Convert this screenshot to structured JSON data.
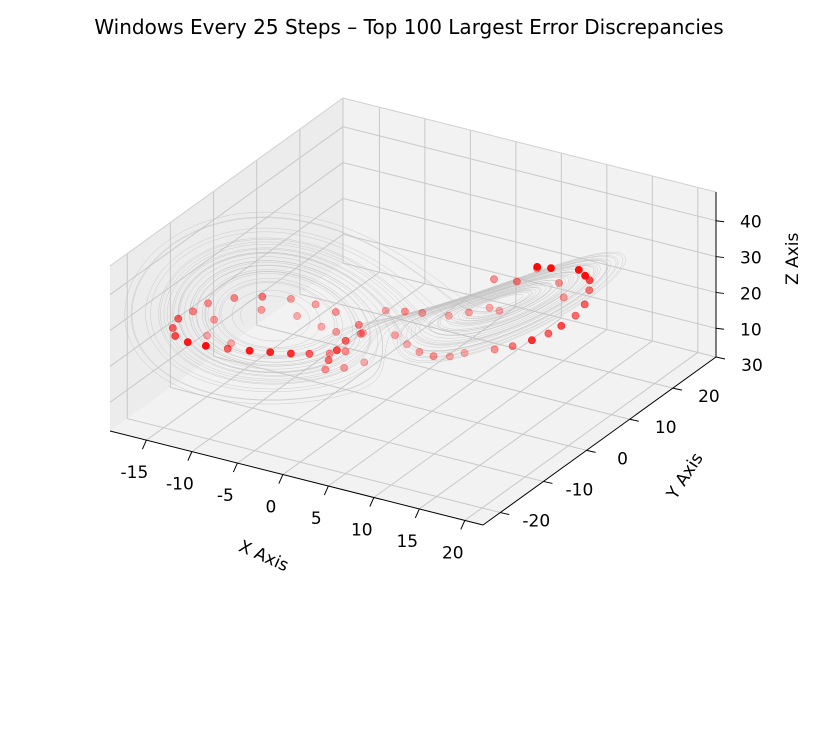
{
  "chart_data": {
    "type": "scatter",
    "projection": "3d",
    "title": "Windows Every 25 Steps – Top 100 Largest Error Discrepancies",
    "xlabel": "X Axis",
    "ylabel": "Y Axis",
    "zlabel": "Z Axis",
    "xlim": [
      -19,
      22
    ],
    "ylim": [
      -24,
      30
    ],
    "zlim": [
      2,
      48
    ],
    "xticks": [
      -15,
      -10,
      -5,
      0,
      5,
      10,
      15,
      20
    ],
    "yticks": [
      -20,
      -10,
      0,
      10,
      20,
      30
    ],
    "zticks": [
      10,
      20,
      30,
      40
    ],
    "grid": true,
    "colors": {
      "trajectory": "#bfbfbf",
      "points": "#ff0000",
      "pane": "#f2f2f2",
      "grid": "#c8c8c8"
    },
    "trajectory": {
      "description_series": "gray Lorenz-attractor trajectory",
      "sigma": 10,
      "rho": 28,
      "beta": 2.6667
    },
    "series": [
      {
        "points": [
          {
            "x": 12.5,
            "y": 11.8,
            "z": 36.5,
            "alpha": 0.95
          },
          {
            "x": 11.4,
            "y": 10.9,
            "z": 36.9,
            "alpha": 0.95
          },
          {
            "x": 14.6,
            "y": 13.8,
            "z": 35.6,
            "alpha": 0.95
          },
          {
            "x": 15.2,
            "y": 14.0,
            "z": 34.2,
            "alpha": 0.95
          },
          {
            "x": 15.6,
            "y": 14.2,
            "z": 33.0,
            "alpha": 0.7
          },
          {
            "x": 15.9,
            "y": 13.5,
            "z": 31.0,
            "alpha": 0.5
          },
          {
            "x": 16.1,
            "y": 12.0,
            "z": 28.5,
            "alpha": 0.6
          },
          {
            "x": 15.8,
            "y": 10.5,
            "z": 26.5,
            "alpha": 0.55
          },
          {
            "x": 15.0,
            "y": 8.9,
            "z": 24.5,
            "alpha": 0.7
          },
          {
            "x": 14.2,
            "y": 7.6,
            "z": 23.0,
            "alpha": 0.6
          },
          {
            "x": 13.0,
            "y": 6.3,
            "z": 21.5,
            "alpha": 0.8
          },
          {
            "x": 11.5,
            "y": 5.0,
            "z": 20.0,
            "alpha": 0.5
          },
          {
            "x": 10.0,
            "y": 4.0,
            "z": 19.0,
            "alpha": 0.4
          },
          {
            "x": 8.6,
            "y": 12.1,
            "z": 30.0,
            "alpha": 0.45
          },
          {
            "x": 6.8,
            "y": 10.6,
            "z": 30.8,
            "alpha": 0.4
          },
          {
            "x": 10.2,
            "y": 13.4,
            "z": 33.5,
            "alpha": 0.35
          },
          {
            "x": 2.1,
            "y": 3.9,
            "z": 24.2,
            "alpha": 0.35
          },
          {
            "x": 0.8,
            "y": 2.6,
            "z": 24.9,
            "alpha": 0.4
          },
          {
            "x": -0.5,
            "y": 0.9,
            "z": 25.8,
            "alpha": 0.3
          },
          {
            "x": 1.9,
            "y": -2.0,
            "z": 23.0,
            "alpha": 0.35
          },
          {
            "x": 3.5,
            "y": -2.6,
            "z": 22.0,
            "alpha": 0.3
          },
          {
            "x": 5.1,
            "y": -3.1,
            "z": 21.3,
            "alpha": 0.35
          },
          {
            "x": 6.6,
            "y": -3.0,
            "z": 21.0,
            "alpha": 0.4
          },
          {
            "x": 8.2,
            "y": -2.6,
            "z": 21.6,
            "alpha": 0.3
          },
          {
            "x": 9.5,
            "y": -1.9,
            "z": 22.8,
            "alpha": 0.3
          },
          {
            "x": -1.2,
            "y": -3.4,
            "z": 22.6,
            "alpha": 0.45
          },
          {
            "x": -2.3,
            "y": -4.6,
            "z": 21.0,
            "alpha": 0.6
          },
          {
            "x": -2.6,
            "y": -6.0,
            "z": 19.4,
            "alpha": 0.7
          },
          {
            "x": -2.8,
            "y": -7.5,
            "z": 17.8,
            "alpha": 0.55
          },
          {
            "x": -2.5,
            "y": -8.9,
            "z": 16.6,
            "alpha": 0.4
          },
          {
            "x": -1.6,
            "y": -3.0,
            "z": 24.5,
            "alpha": 0.45
          },
          {
            "x": -4.0,
            "y": -3.3,
            "z": 26.8,
            "alpha": 0.4
          },
          {
            "x": -5.7,
            "y": -4.4,
            "z": 28.8,
            "alpha": 0.35
          },
          {
            "x": -7.6,
            "y": -6.1,
            "z": 30.6,
            "alpha": 0.35
          },
          {
            "x": -9.6,
            "y": -8.5,
            "z": 32.0,
            "alpha": 0.5
          },
          {
            "x": -11.5,
            "y": -11.0,
            "z": 32.6,
            "alpha": 0.45
          },
          {
            "x": -13.2,
            "y": -13.5,
            "z": 32.2,
            "alpha": 0.4
          },
          {
            "x": -14.0,
            "y": -15.3,
            "z": 31.0,
            "alpha": 0.45
          },
          {
            "x": -15.1,
            "y": -16.4,
            "z": 29.2,
            "alpha": 0.6
          },
          {
            "x": -15.8,
            "y": -16.2,
            "z": 26.0,
            "alpha": 0.6
          },
          {
            "x": -16.2,
            "y": -14.8,
            "z": 22.3,
            "alpha": 0.7
          },
          {
            "x": -15.9,
            "y": -12.5,
            "z": 18.8,
            "alpha": 0.9
          },
          {
            "x": -15.0,
            "y": -10.2,
            "z": 16.3,
            "alpha": 0.95
          },
          {
            "x": -13.6,
            "y": -8.1,
            "z": 14.6,
            "alpha": 0.6
          },
          {
            "x": -12.0,
            "y": -6.4,
            "z": 13.6,
            "alpha": 0.9
          },
          {
            "x": -10.4,
            "y": -5.0,
            "z": 13.0,
            "alpha": 0.85
          },
          {
            "x": -8.6,
            "y": -4.0,
            "z": 12.9,
            "alpha": 0.8
          },
          {
            "x": -6.9,
            "y": -3.3,
            "z": 13.3,
            "alpha": 0.6
          },
          {
            "x": -5.0,
            "y": -2.6,
            "z": 14.0,
            "alpha": 0.4
          },
          {
            "x": -3.5,
            "y": -2.1,
            "z": 15.1,
            "alpha": 0.4
          },
          {
            "x": -9.0,
            "y": -10.0,
            "z": 30.0,
            "alpha": 0.35
          },
          {
            "x": -12.4,
            "y": -13.8,
            "z": 28.4,
            "alpha": 0.35
          },
          {
            "x": -6.5,
            "y": -7.0,
            "z": 27.3,
            "alpha": 0.3
          },
          {
            "x": -4.2,
            "y": -6.2,
            "z": 25.1,
            "alpha": 0.3
          },
          {
            "x": -3.1,
            "y": -5.1,
            "z": 23.4,
            "alpha": 0.35
          },
          {
            "x": -14.5,
            "y": -11.0,
            "z": 20.2,
            "alpha": 0.3
          },
          {
            "x": -12.8,
            "y": -9.0,
            "z": 17.4,
            "alpha": 0.3
          },
          {
            "x": 4.0,
            "y": 6.0,
            "z": 22.8,
            "alpha": 0.3
          },
          {
            "x": 5.6,
            "y": 7.3,
            "z": 23.6,
            "alpha": 0.35
          },
          {
            "x": 7.2,
            "y": 8.7,
            "z": 24.8,
            "alpha": 0.3
          },
          {
            "x": 12.8,
            "y": 13.0,
            "z": 31.5,
            "alpha": 0.4
          },
          {
            "x": 13.8,
            "y": 12.0,
            "z": 29.0,
            "alpha": 0.35
          },
          {
            "x": 9.2,
            "y": 6.8,
            "z": 26.8,
            "alpha": 0.3
          },
          {
            "x": -0.9,
            "y": -7.9,
            "z": 17.2,
            "alpha": 0.35
          },
          {
            "x": 0.6,
            "y": -6.4,
            "z": 18.4,
            "alpha": 0.3
          },
          {
            "x": -2.0,
            "y": -1.2,
            "z": 20.4,
            "alpha": 0.3
          }
        ]
      }
    ]
  }
}
